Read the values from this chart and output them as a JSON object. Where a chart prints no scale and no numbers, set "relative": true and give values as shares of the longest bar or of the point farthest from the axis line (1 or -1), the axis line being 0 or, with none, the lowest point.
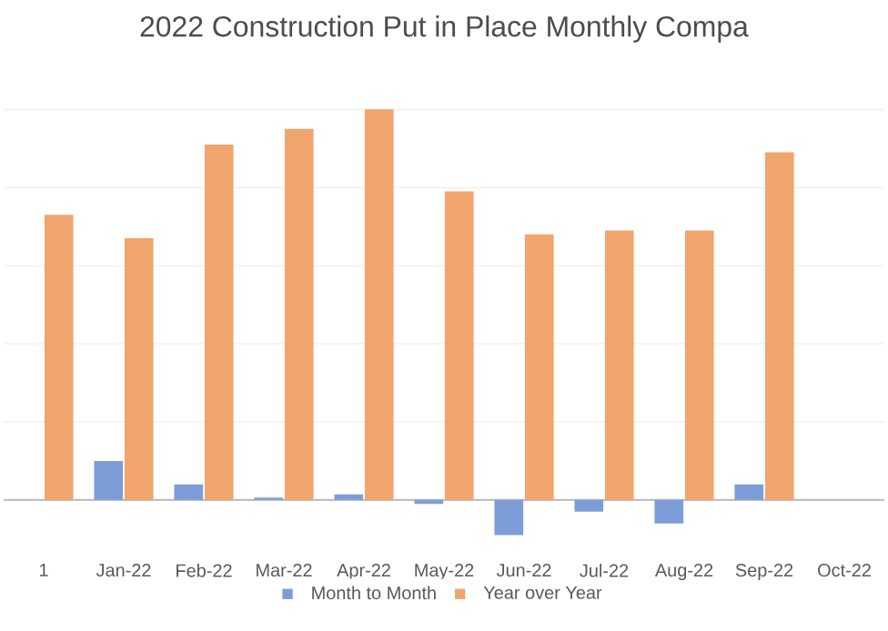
{
  "chart_data": {
    "type": "bar",
    "title": "2022 Construction Put in Place Monthly Compa",
    "relative": true,
    "grid": "y",
    "legend": "bottom",
    "categories": [
      "1",
      "Jan-22",
      "Feb-22",
      "Mar-22",
      "Apr-22",
      "May-22",
      "Jun-22",
      "Jul-22",
      "Aug-22",
      "Sep-22",
      "Oct-22"
    ],
    "series": [
      {
        "name": "Month to Month",
        "color": "#7c9dd8",
        "values": [
          null,
          0.1,
          0.04,
          0.006,
          0.014,
          -0.01,
          -0.09,
          -0.03,
          -0.06,
          0.04,
          null
        ]
      },
      {
        "name": "Year over Year",
        "color": "#f1a56e",
        "values": [
          0.73,
          0.67,
          0.91,
          0.95,
          1,
          0.79,
          0.68,
          0.69,
          0.69,
          0.89,
          null
        ]
      }
    ]
  }
}
